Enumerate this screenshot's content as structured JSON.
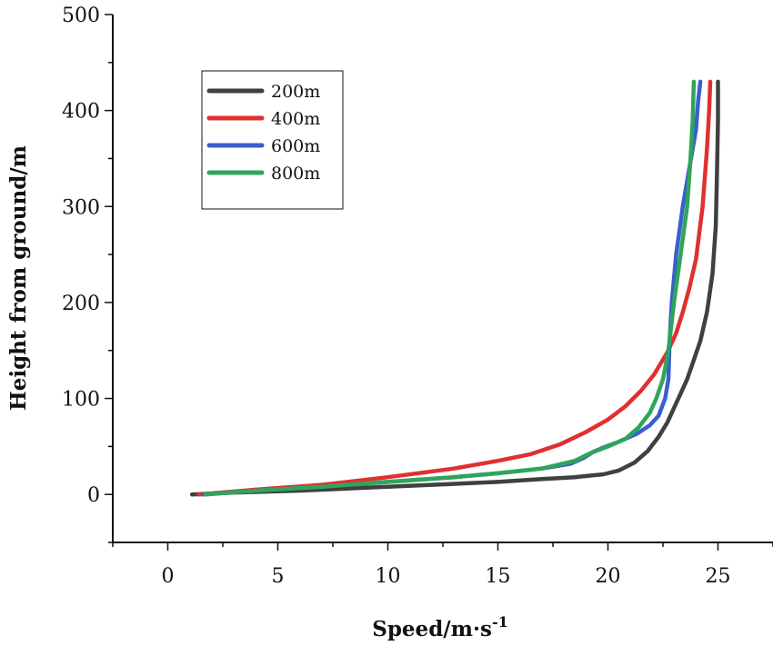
{
  "chart_data": {
    "type": "line",
    "title": "",
    "xlabel": "Speed/m·s",
    "xlabel_superscript": "-1",
    "ylabel": "Height from ground/m",
    "xlim": [
      -2.5,
      27.5
    ],
    "ylim": [
      -50,
      500
    ],
    "xticks": [
      0,
      5,
      10,
      15,
      20,
      25
    ],
    "yticks": [
      0,
      100,
      200,
      300,
      400,
      500
    ],
    "grid": false,
    "legend_position": "top-left",
    "series": [
      {
        "name": "200m",
        "color": "#404040",
        "points": [
          [
            1.1,
            0
          ],
          [
            3,
            2
          ],
          [
            6,
            4
          ],
          [
            9,
            7
          ],
          [
            12,
            10
          ],
          [
            15,
            13
          ],
          [
            17,
            16
          ],
          [
            18.5,
            18
          ],
          [
            19.8,
            21
          ],
          [
            20.5,
            25
          ],
          [
            21.2,
            33
          ],
          [
            21.8,
            45
          ],
          [
            22.3,
            60
          ],
          [
            22.7,
            75
          ],
          [
            23,
            90
          ],
          [
            23.3,
            105
          ],
          [
            23.6,
            120
          ],
          [
            23.9,
            140
          ],
          [
            24.2,
            160
          ],
          [
            24.5,
            190
          ],
          [
            24.75,
            230
          ],
          [
            24.9,
            280
          ],
          [
            24.95,
            330
          ],
          [
            25,
            390
          ],
          [
            25,
            430
          ]
        ]
      },
      {
        "name": "400m",
        "color": "#e03030",
        "points": [
          [
            1.4,
            0
          ],
          [
            4,
            5
          ],
          [
            7,
            10
          ],
          [
            10,
            18
          ],
          [
            13,
            27
          ],
          [
            15,
            35
          ],
          [
            16.5,
            42
          ],
          [
            17.8,
            52
          ],
          [
            19,
            65
          ],
          [
            20,
            78
          ],
          [
            20.8,
            92
          ],
          [
            21.5,
            108
          ],
          [
            22.1,
            125
          ],
          [
            22.7,
            148
          ],
          [
            23.1,
            168
          ],
          [
            23.4,
            190
          ],
          [
            23.7,
            215
          ],
          [
            24,
            245
          ],
          [
            24.3,
            300
          ],
          [
            24.5,
            360
          ],
          [
            24.6,
            400
          ],
          [
            24.65,
            430
          ]
        ]
      },
      {
        "name": "600m",
        "color": "#3a5fcd",
        "points": [
          [
            1.6,
            0
          ],
          [
            4,
            4
          ],
          [
            7,
            8
          ],
          [
            10,
            13
          ],
          [
            13,
            18
          ],
          [
            15,
            22
          ],
          [
            17,
            27
          ],
          [
            18.3,
            32
          ],
          [
            18.9,
            38
          ],
          [
            19.3,
            44
          ],
          [
            19.7,
            48
          ],
          [
            20.5,
            55
          ],
          [
            21.3,
            63
          ],
          [
            21.9,
            72
          ],
          [
            22.3,
            82
          ],
          [
            22.6,
            100
          ],
          [
            22.75,
            120
          ],
          [
            22.8,
            160
          ],
          [
            22.9,
            200
          ],
          [
            23.1,
            250
          ],
          [
            23.4,
            300
          ],
          [
            23.7,
            340
          ],
          [
            24,
            380
          ],
          [
            24.1,
            410
          ],
          [
            24.2,
            430
          ]
        ]
      },
      {
        "name": "800m",
        "color": "#2fa55a",
        "points": [
          [
            1.7,
            0
          ],
          [
            4,
            4
          ],
          [
            7,
            8
          ],
          [
            10,
            13
          ],
          [
            13,
            18
          ],
          [
            15,
            22
          ],
          [
            17,
            27
          ],
          [
            18.5,
            35
          ],
          [
            19.2,
            43
          ],
          [
            20,
            50
          ],
          [
            20.8,
            58
          ],
          [
            21.4,
            70
          ],
          [
            21.9,
            85
          ],
          [
            22.2,
            100
          ],
          [
            22.5,
            120
          ],
          [
            22.75,
            150
          ],
          [
            23,
            200
          ],
          [
            23.3,
            250
          ],
          [
            23.6,
            300
          ],
          [
            23.75,
            350
          ],
          [
            23.85,
            390
          ],
          [
            23.9,
            430
          ]
        ]
      }
    ]
  }
}
